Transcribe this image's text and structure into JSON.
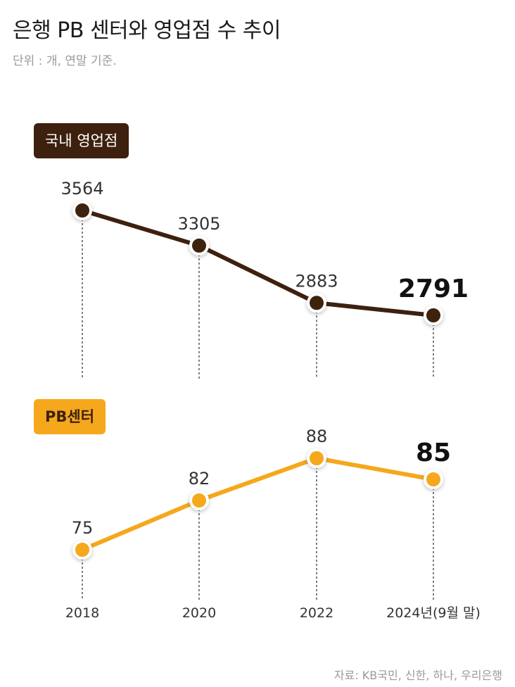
{
  "header": {
    "title": "은행 PB 센터와 영업점 수 추이",
    "subtitle": "단위 : 개, 연말 기준."
  },
  "source": "자료: KB국민, 신한, 하나, 우리은행",
  "colors": {
    "domestic": "#3d200e",
    "pb": "#f5a81c",
    "guide": "#555555"
  },
  "chart_data": {
    "type": "line",
    "categories": [
      "2018",
      "2020",
      "2022",
      "2024년(9월 말)"
    ],
    "series": [
      {
        "name": "국내 영업점",
        "values": [
          3564,
          3305,
          2883,
          2791
        ]
      },
      {
        "name": "PB센터",
        "values": [
          75,
          82,
          88,
          85
        ]
      }
    ],
    "title": "은행 PB 센터와 영업점 수 추이",
    "xlabel": "",
    "ylabel": "",
    "grid": false
  }
}
